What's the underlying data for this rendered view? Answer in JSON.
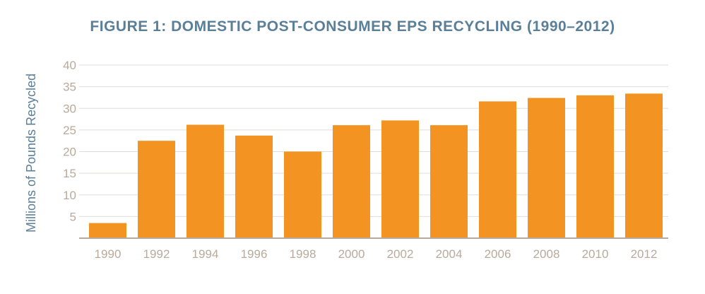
{
  "chart_data": {
    "type": "bar",
    "title": "FIGURE 1: DOMESTIC POST-CONSUMER EPS RECYCLING (1990–2012)",
    "xlabel": "",
    "ylabel": "Millions of Pounds Recycled",
    "categories": [
      "1990",
      "1992",
      "1994",
      "1996",
      "1998",
      "2000",
      "2002",
      "2004",
      "2006",
      "2008",
      "2010",
      "2012"
    ],
    "values": [
      3.5,
      22.5,
      26.2,
      23.7,
      20.0,
      26.1,
      27.2,
      26.1,
      31.6,
      32.4,
      33.0,
      33.4
    ],
    "ylim": [
      0,
      40
    ],
    "yticks": [
      5,
      10,
      15,
      20,
      25,
      30,
      35,
      40
    ],
    "grid": true,
    "colors": {
      "bar": "#f39322",
      "title": "#5a7f98",
      "tick": "#b8aa9c",
      "grid": "#e0dbd5",
      "axis": "#b8aa9c"
    }
  }
}
